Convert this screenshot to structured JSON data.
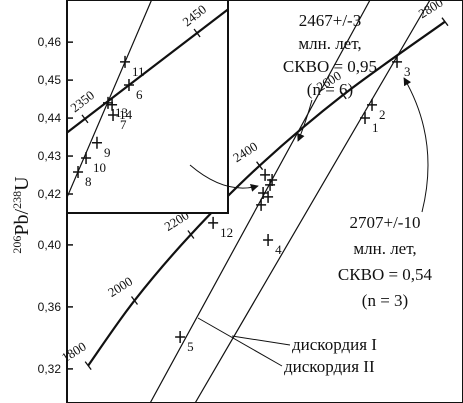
{
  "chart_data": [
    {
      "type": "scatter",
      "ylabel": [
        "206",
        "Pb/",
        "238",
        "U"
      ],
      "xlim": [
        4.3,
        15.26
      ],
      "ylim": [
        0.298,
        0.558
      ],
      "yticks": [
        {
          "value": 0.32,
          "label": "0,32"
        },
        {
          "value": 0.36,
          "label": "0,36"
        },
        {
          "value": 0.4,
          "label": "0,40"
        }
      ],
      "concordia": {
        "ages": [
          1800,
          2000,
          2200,
          2400,
          2600,
          2800
        ],
        "x": [
          4.886,
          6.168,
          7.729,
          9.63,
          11.944,
          14.761
        ],
        "y": [
          0.3221,
          0.3641,
          0.4067,
          0.4511,
          0.4968,
          0.544
        ]
      },
      "discordias": [
        {
          "name": "дискордия I",
          "x": [
            14.346,
            7.846
          ],
          "y": [
            0.558,
            0.298
          ]
        },
        {
          "name": "дискордия II",
          "x": [
            12.687,
            6.601
          ],
          "y": [
            0.558,
            0.298
          ]
        }
      ],
      "points": {
        "labels": [
          "1",
          "2",
          "3",
          "4",
          "5",
          "12",
          null,
          null,
          null,
          null,
          null,
          null
        ],
        "x": [
          12.548,
          12.742,
          13.434,
          9.865,
          7.431,
          8.344,
          9.782,
          9.92,
          9.727,
          9.865,
          9.672,
          9.976
        ],
        "y": [
          0.4819,
          0.4903,
          0.5181,
          0.4032,
          0.3406,
          0.4142,
          0.4452,
          0.4387,
          0.4335,
          0.431,
          0.4258,
          0.4419
        ]
      },
      "annotations": [
        [
          "2467+/-3",
          "млн. лет,",
          "СКВО = 0,95",
          "(n = 6)"
        ],
        [
          "2707+/-10",
          "млн. лет,",
          "СКВО = 0,54",
          "(n = 3)"
        ]
      ]
    },
    {
      "type": "scatter",
      "xlim": [
        8.951,
        10.455
      ],
      "ylim": [
        0.415,
        0.4711
      ],
      "yticks": [
        {
          "value": 0.42,
          "label": "0,42"
        },
        {
          "value": 0.43,
          "label": "0,43"
        },
        {
          "value": 0.44,
          "label": "0,44"
        },
        {
          "value": 0.45,
          "label": "0,45"
        },
        {
          "value": 0.46,
          "label": "0,46"
        }
      ],
      "concordia": {
        "ages": [
          2350,
          2450
        ],
        "x": [
          9.119,
          10.166
        ],
        "y": [
          0.4398,
          0.4624
        ]
      },
      "discordias": [
        {
          "x": [
            8.951,
            9.741
          ],
          "y": [
            0.4191,
            0.4711
          ]
        }
      ],
      "points": {
        "labels": [
          "11",
          "6",
          "13",
          "14",
          "7",
          "9",
          "10",
          "8"
        ],
        "x": [
          9.493,
          9.53,
          9.334,
          9.372,
          9.381,
          9.231,
          9.129,
          9.054
        ],
        "y": [
          0.4548,
          0.4487,
          0.444,
          0.4435,
          0.4408,
          0.4335,
          0.4295,
          0.4258
        ]
      }
    }
  ]
}
